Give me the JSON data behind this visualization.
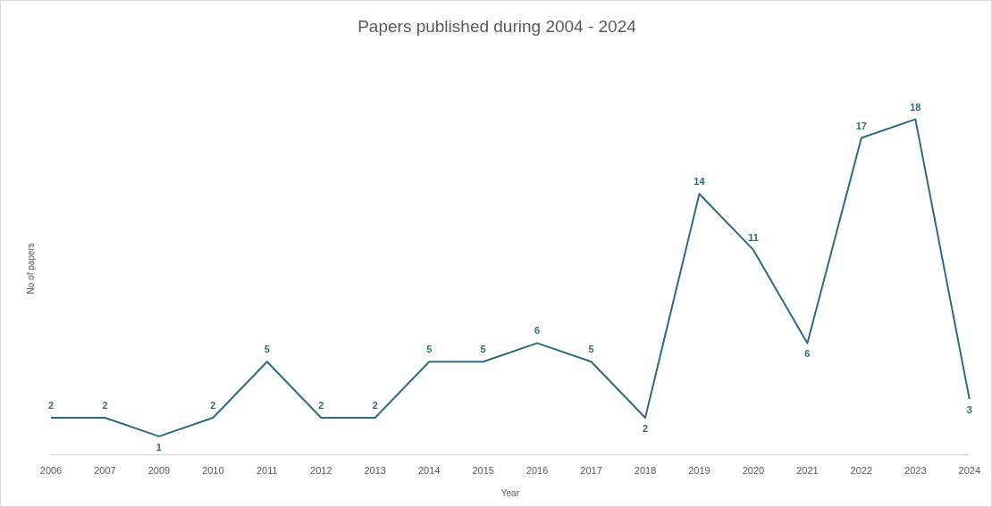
{
  "chart_data": {
    "type": "line",
    "title": "Papers published during 2004 - 2024",
    "xlabel": "Year",
    "ylabel": "No of papers",
    "categories": [
      "2006",
      "2007",
      "2009",
      "2010",
      "2011",
      "2012",
      "2013",
      "2014",
      "2015",
      "2016",
      "2017",
      "2018",
      "2019",
      "2020",
      "2021",
      "2022",
      "2023",
      "2024"
    ],
    "series": [
      {
        "color": "#2f6b7f",
        "values": [
          2,
          2,
          1,
          2,
          5,
          2,
          2,
          5,
          5,
          6,
          5,
          2,
          14,
          11,
          6,
          17,
          18,
          3
        ]
      }
    ],
    "data_labels": true,
    "grid": false,
    "legend": false,
    "line_style": "solid",
    "tick_labels": "x"
  }
}
